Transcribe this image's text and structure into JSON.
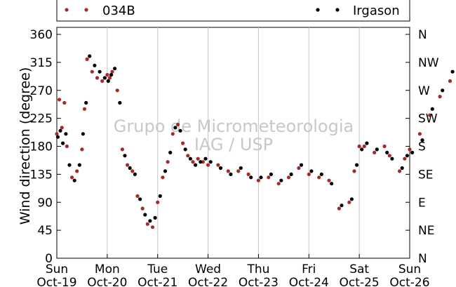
{
  "chart_data": {
    "type": "scatter",
    "title": "",
    "ylabel": "Wind direction (degree)",
    "xlabel": "",
    "ylim": [
      0,
      360
    ],
    "xlim": [
      "2014-10-19",
      "2014-10-26"
    ],
    "grid": "vertical",
    "legend_position": "top",
    "watermark": [
      "Grupo de Micrometeorologia",
      "IAG / USP"
    ],
    "x_tick_labels": [
      {
        "day": "Sun",
        "date": "Oct-19"
      },
      {
        "day": "Mon",
        "date": "Oct-20"
      },
      {
        "day": "Tue",
        "date": "Oct-21"
      },
      {
        "day": "Wed",
        "date": "Oct-22"
      },
      {
        "day": "Thu",
        "date": "Oct-23"
      },
      {
        "day": "Fri",
        "date": "Oct-24"
      },
      {
        "day": "Sat",
        "date": "Oct-25"
      },
      {
        "day": "Sun",
        "date": "Oct-26"
      }
    ],
    "y_ticks": [
      0,
      45,
      90,
      135,
      180,
      225,
      270,
      315,
      360
    ],
    "y2_tick_labels": [
      "N",
      "NE",
      "E",
      "SE",
      "S",
      "SW",
      "W",
      "NW",
      "N"
    ],
    "series": [
      {
        "name": "034B",
        "color": "#a52a2a",
        "points": [
          [
            0.0,
            200
          ],
          [
            0.05,
            255
          ],
          [
            0.1,
            210
          ],
          [
            0.15,
            250
          ],
          [
            0.2,
            180
          ],
          [
            0.3,
            130
          ],
          [
            0.4,
            140
          ],
          [
            0.5,
            175
          ],
          [
            0.55,
            240
          ],
          [
            0.6,
            320
          ],
          [
            0.7,
            300
          ],
          [
            0.8,
            290
          ],
          [
            0.9,
            285
          ],
          [
            1.0,
            295
          ],
          [
            1.05,
            290
          ],
          [
            1.1,
            300
          ],
          [
            1.2,
            270
          ],
          [
            1.3,
            175
          ],
          [
            1.4,
            150
          ],
          [
            1.5,
            140
          ],
          [
            1.6,
            100
          ],
          [
            1.7,
            80
          ],
          [
            1.8,
            55
          ],
          [
            1.9,
            50
          ],
          [
            2.0,
            90
          ],
          [
            2.1,
            130
          ],
          [
            2.2,
            155
          ],
          [
            2.3,
            200
          ],
          [
            2.4,
            215
          ],
          [
            2.5,
            185
          ],
          [
            2.6,
            165
          ],
          [
            2.7,
            155
          ],
          [
            2.8,
            160
          ],
          [
            2.9,
            155
          ],
          [
            3.0,
            150
          ],
          [
            3.2,
            150
          ],
          [
            3.4,
            140
          ],
          [
            3.6,
            140
          ],
          [
            3.8,
            135
          ],
          [
            4.0,
            125
          ],
          [
            4.2,
            130
          ],
          [
            4.4,
            120
          ],
          [
            4.6,
            130
          ],
          [
            4.8,
            145
          ],
          [
            5.0,
            135
          ],
          [
            5.2,
            130
          ],
          [
            5.4,
            125
          ],
          [
            5.6,
            80
          ],
          [
            5.8,
            90
          ],
          [
            5.9,
            140
          ],
          [
            6.0,
            180
          ],
          [
            6.1,
            180
          ],
          [
            6.3,
            170
          ],
          [
            6.5,
            180
          ],
          [
            6.6,
            165
          ],
          [
            6.8,
            140
          ],
          [
            6.9,
            160
          ],
          [
            7.0,
            175
          ],
          [
            7.2,
            200
          ],
          [
            7.4,
            230
          ],
          [
            7.6,
            260
          ],
          [
            7.8,
            285
          ]
        ]
      },
      {
        "name": "Irgason",
        "color": "#000000",
        "points": [
          [
            0.02,
            195
          ],
          [
            0.07,
            205
          ],
          [
            0.12,
            185
          ],
          [
            0.18,
            200
          ],
          [
            0.25,
            150
          ],
          [
            0.35,
            125
          ],
          [
            0.45,
            150
          ],
          [
            0.52,
            200
          ],
          [
            0.58,
            250
          ],
          [
            0.65,
            325
          ],
          [
            0.75,
            310
          ],
          [
            0.85,
            300
          ],
          [
            0.95,
            290
          ],
          [
            1.02,
            285
          ],
          [
            1.08,
            295
          ],
          [
            1.15,
            305
          ],
          [
            1.25,
            250
          ],
          [
            1.35,
            165
          ],
          [
            1.45,
            145
          ],
          [
            1.55,
            135
          ],
          [
            1.65,
            95
          ],
          [
            1.75,
            70
          ],
          [
            1.85,
            60
          ],
          [
            1.95,
            65
          ],
          [
            2.05,
            100
          ],
          [
            2.15,
            140
          ],
          [
            2.25,
            170
          ],
          [
            2.35,
            210
          ],
          [
            2.45,
            205
          ],
          [
            2.55,
            175
          ],
          [
            2.65,
            160
          ],
          [
            2.75,
            150
          ],
          [
            2.85,
            155
          ],
          [
            2.95,
            160
          ],
          [
            3.05,
            155
          ],
          [
            3.25,
            145
          ],
          [
            3.45,
            135
          ],
          [
            3.65,
            145
          ],
          [
            3.85,
            130
          ],
          [
            4.05,
            130
          ],
          [
            4.25,
            135
          ],
          [
            4.45,
            125
          ],
          [
            4.65,
            135
          ],
          [
            4.85,
            150
          ],
          [
            5.05,
            140
          ],
          [
            5.25,
            135
          ],
          [
            5.45,
            120
          ],
          [
            5.65,
            85
          ],
          [
            5.85,
            95
          ],
          [
            5.95,
            150
          ],
          [
            6.05,
            175
          ],
          [
            6.15,
            185
          ],
          [
            6.35,
            175
          ],
          [
            6.55,
            170
          ],
          [
            6.65,
            160
          ],
          [
            6.85,
            145
          ],
          [
            6.95,
            165
          ],
          [
            7.05,
            170
          ],
          [
            7.25,
            190
          ],
          [
            7.45,
            240
          ],
          [
            7.65,
            270
          ],
          [
            7.85,
            300
          ]
        ]
      }
    ]
  }
}
